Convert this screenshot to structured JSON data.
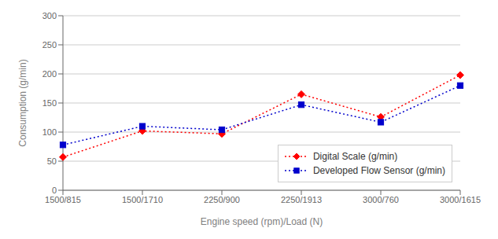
{
  "chart_data": {
    "type": "line",
    "categories": [
      "1500/815",
      "1500/1710",
      "2250/900",
      "2250/1913",
      "3000/760",
      "3000/1615"
    ],
    "series": [
      {
        "name": "Digital Scale (g/min)",
        "color": "#ff0000",
        "marker": "diamond",
        "line_style": "dotted",
        "values": [
          57,
          102,
          97,
          165,
          126,
          198
        ]
      },
      {
        "name": "Developed Flow Sensor (g/min)",
        "color": "#0000cc",
        "marker": "square",
        "line_style": "dotted",
        "values": [
          78,
          110,
          104,
          147,
          117,
          180
        ]
      }
    ],
    "xlabel": "Engine speed (rpm)/Load (N)",
    "ylabel": "Consumption (g/min)",
    "ylim": [
      0,
      300
    ],
    "yticks": [
      0,
      50,
      100,
      150,
      200,
      250,
      300
    ],
    "grid": true,
    "legend": "lower right"
  }
}
